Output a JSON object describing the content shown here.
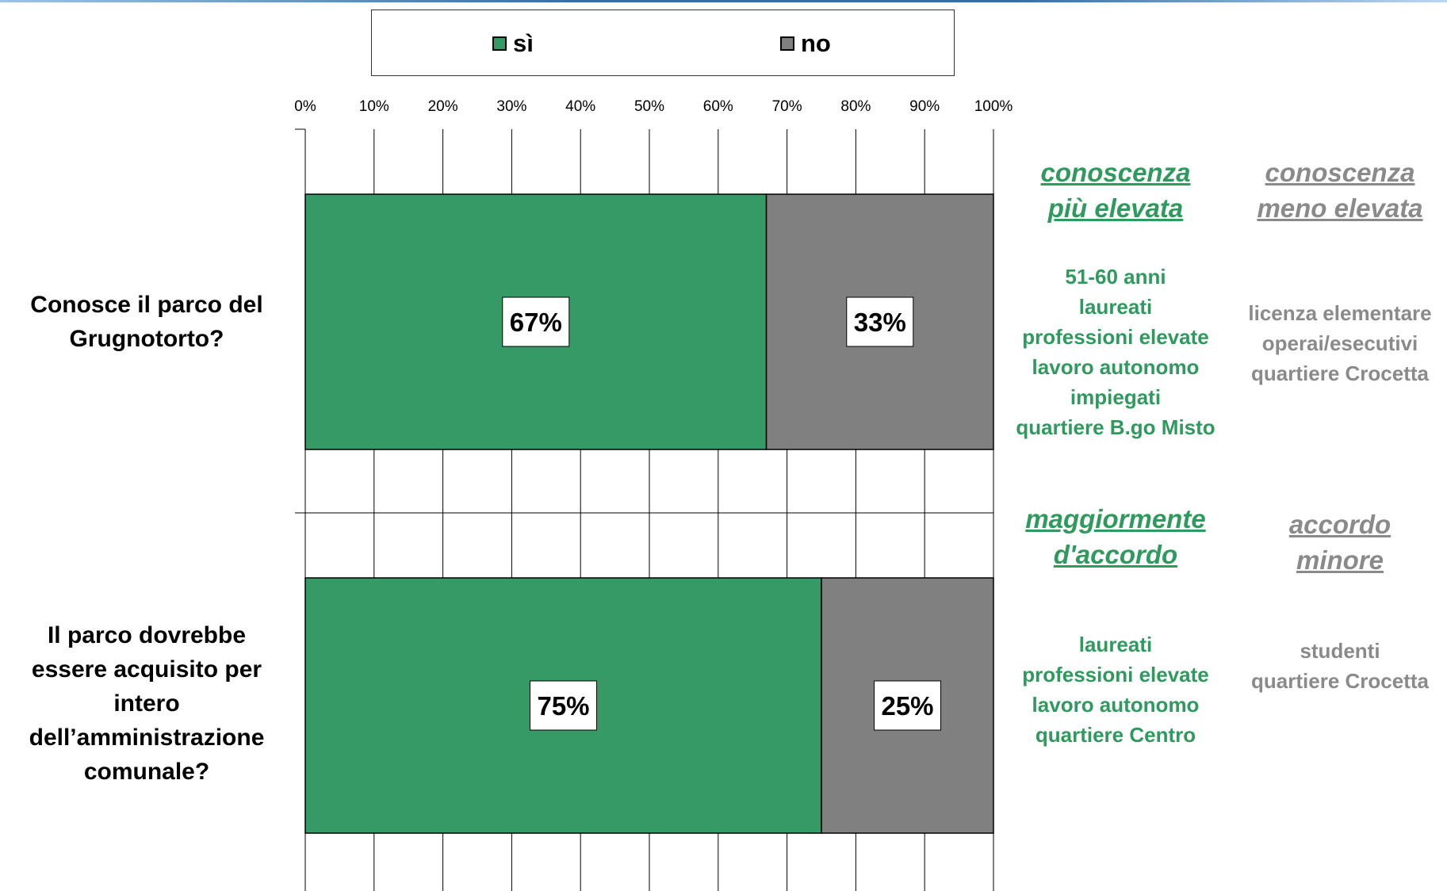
{
  "legend": {
    "yes_label": "sì",
    "no_label": "no"
  },
  "colors": {
    "yes": "#359a65",
    "no": "#808080",
    "yes_text": "#2e9a5e",
    "no_text": "#8a8a8a"
  },
  "chart_data": {
    "type": "bar",
    "orientation": "horizontal",
    "stacked": true,
    "categories": [
      "Conosce il parco del Grugnotorto?",
      "Il parco dovrebbe essere acquisito per intero dell’amministrazione comunale?"
    ],
    "series": [
      {
        "name": "sì",
        "values": [
          67,
          75
        ]
      },
      {
        "name": "no",
        "values": [
          33,
          25
        ]
      }
    ],
    "xlim": [
      0,
      100
    ],
    "xticks": [
      "0%",
      "10%",
      "20%",
      "30%",
      "40%",
      "50%",
      "60%",
      "70%",
      "80%",
      "90%",
      "100%"
    ],
    "data_labels": [
      [
        "67%",
        "75%"
      ],
      [
        "33%",
        "25%"
      ]
    ],
    "grid": true,
    "legend_position": "top"
  },
  "questions": [
    {
      "lines": [
        "Conosce il parco del",
        "Grugnotorto?"
      ]
    },
    {
      "lines": [
        "Il parco dovrebbe",
        "essere acquisito per",
        "intero",
        "dell’amministrazione",
        "comunale?"
      ]
    }
  ],
  "panels": [
    {
      "high_heading": [
        "conoscenza",
        "più elevata"
      ],
      "low_heading": [
        "conoscenza",
        "meno elevata"
      ],
      "high_items": [
        "51-60 anni",
        "laureati",
        "professioni elevate",
        "lavoro autonomo",
        "impiegati",
        "quartiere B.go Misto"
      ],
      "low_items": [
        "licenza elementare",
        "operai/esecutivi",
        "quartiere Crocetta"
      ]
    },
    {
      "high_heading": [
        "maggiormente",
        "d'accordo"
      ],
      "low_heading": [
        "accordo",
        "minore"
      ],
      "high_items": [
        "laureati",
        "professioni elevate",
        "lavoro autonomo",
        "quartiere Centro"
      ],
      "low_items": [
        "studenti",
        "quartiere Crocetta"
      ]
    }
  ]
}
